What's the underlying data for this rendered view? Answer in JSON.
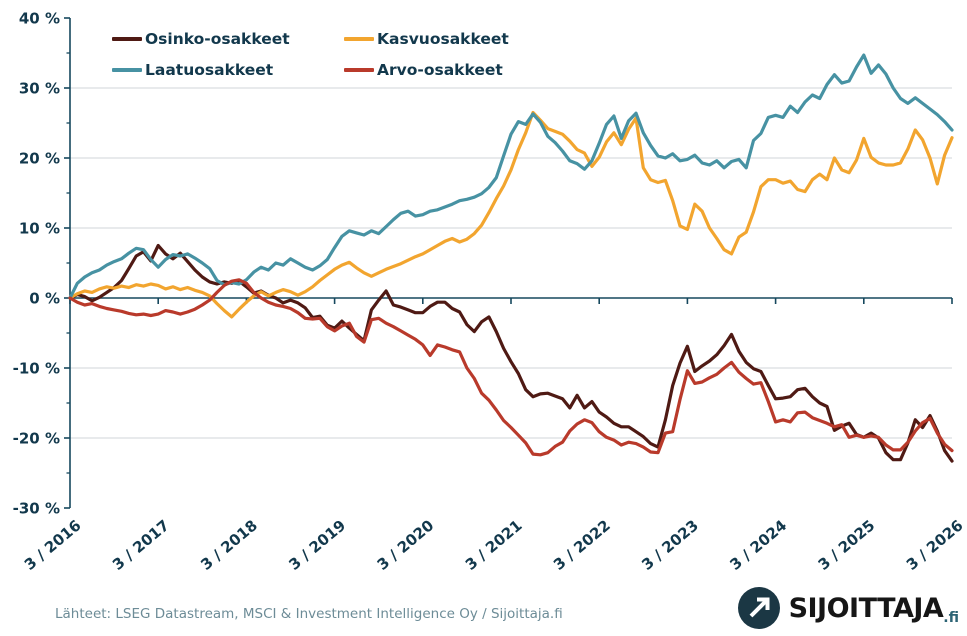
{
  "chart_data": {
    "type": "line",
    "title": "",
    "unit": "%",
    "x_start": "3/2016",
    "x_end": "3/2026",
    "x_interval": "monthly",
    "n_points": 121,
    "x_tick_labels": [
      "3 / 2016",
      "3 / 2017",
      "3 / 2018",
      "3 / 2019",
      "3 / 2020",
      "3 / 2021",
      "3 / 2022",
      "3 / 2023",
      "3 / 2024",
      "3 / 2025",
      "3 / 2026"
    ],
    "y_ticks": [
      40,
      30,
      20,
      10,
      0,
      -10,
      -20,
      -30
    ],
    "y_tick_labels": [
      "40 %",
      "30 %",
      "20 %",
      "10 %",
      "0 %",
      "-10 %",
      "-20 %",
      "-30 %"
    ],
    "ylim": [
      -30,
      40
    ],
    "grid": "horizontal",
    "legend_position": "top-left",
    "series": [
      {
        "name": "Osinko-osakkeet",
        "color": "#4f1a14",
        "values": [
          0,
          0.5,
          0.2,
          -0.4,
          0.1,
          0.8,
          1.5,
          2.5,
          4.2,
          6.0,
          6.6,
          5.3,
          7.5,
          6.3,
          5.6,
          6.4,
          5.2,
          4.0,
          3.0,
          2.3,
          2.0,
          2.3,
          2.1,
          2.4,
          1.6,
          0.7,
          1.0,
          0.4,
          0.0,
          -0.7,
          -0.3,
          -0.7,
          -1.4,
          -2.8,
          -2.6,
          -3.9,
          -4.3,
          -3.3,
          -4.3,
          -5.2,
          -6.1,
          -1.7,
          -0.3,
          1.0,
          -1.0,
          -1.3,
          -1.7,
          -2.1,
          -2.1,
          -1.2,
          -0.6,
          -0.6,
          -1.5,
          -2.0,
          -3.8,
          -4.8,
          -3.4,
          -2.7,
          -4.8,
          -7.2,
          -9.1,
          -10.8,
          -13.1,
          -14.1,
          -13.7,
          -13.6,
          -14.0,
          -14.4,
          -15.7,
          -13.9,
          -15.7,
          -14.8,
          -16.3,
          -17.0,
          -17.9,
          -18.4,
          -18.4,
          -19.1,
          -19.8,
          -20.8,
          -21.3,
          -17.4,
          -12.5,
          -9.3,
          -6.9,
          -10.5,
          -9.7,
          -9.0,
          -8.1,
          -6.8,
          -5.2,
          -7.6,
          -9.2,
          -10.1,
          -10.5,
          -12.5,
          -14.4,
          -14.3,
          -14.1,
          -13.1,
          -12.9,
          -14.1,
          -15.0,
          -15.5,
          -18.9,
          -18.3,
          -17.9,
          -19.5,
          -19.9,
          -19.3,
          -20.0,
          -22.1,
          -23.1,
          -23.1,
          -20.7,
          -17.4,
          -18.5,
          -16.8,
          -19.0,
          -21.8,
          -23.3
        ]
      },
      {
        "name": "Kasvuosakkeet",
        "color": "#f2a52f",
        "values": [
          0,
          0.6,
          1.0,
          0.8,
          1.3,
          1.6,
          1.4,
          1.7,
          1.5,
          1.9,
          1.7,
          2.0,
          1.8,
          1.3,
          1.6,
          1.2,
          1.5,
          1.1,
          0.8,
          0.3,
          -0.8,
          -1.8,
          -2.7,
          -1.6,
          -0.6,
          0.3,
          0.9,
          0.3,
          0.8,
          1.2,
          0.9,
          0.4,
          0.9,
          1.6,
          2.5,
          3.3,
          4.1,
          4.7,
          5.1,
          4.3,
          3.6,
          3.1,
          3.6,
          4.1,
          4.5,
          4.9,
          5.4,
          5.9,
          6.3,
          6.9,
          7.5,
          8.1,
          8.5,
          8.0,
          8.4,
          9.2,
          10.4,
          12.2,
          14.2,
          16.0,
          18.3,
          21.2,
          23.6,
          26.5,
          25.4,
          24.2,
          23.8,
          23.4,
          22.4,
          21.2,
          20.7,
          18.8,
          20.1,
          22.3,
          23.6,
          21.9,
          24.1,
          25.7,
          18.6,
          16.9,
          16.5,
          16.8,
          13.9,
          10.3,
          9.8,
          13.4,
          12.4,
          10.0,
          8.5,
          6.9,
          6.3,
          8.7,
          9.4,
          12.3,
          15.9,
          16.9,
          16.9,
          16.4,
          16.7,
          15.5,
          15.2,
          16.9,
          17.7,
          16.9,
          20.0,
          18.3,
          17.9,
          19.7,
          22.8,
          20.1,
          19.3,
          19.0,
          19.0,
          19.3,
          21.3,
          24.0,
          22.6,
          20.0,
          16.3,
          20.4,
          22.9
        ]
      },
      {
        "name": "Laatuosakkeet",
        "color": "#4792a3",
        "values": [
          0,
          2.1,
          3.0,
          3.6,
          4.0,
          4.7,
          5.2,
          5.6,
          6.4,
          7.1,
          6.9,
          5.5,
          4.4,
          5.5,
          6.2,
          6.0,
          6.3,
          5.7,
          5.0,
          4.2,
          2.5,
          1.9,
          2.2,
          2.0,
          2.6,
          3.7,
          4.4,
          4.0,
          5.0,
          4.7,
          5.6,
          5.0,
          4.4,
          4.0,
          4.6,
          5.5,
          7.2,
          8.8,
          9.6,
          9.3,
          9.0,
          9.6,
          9.2,
          10.2,
          11.2,
          12.1,
          12.4,
          11.7,
          11.9,
          12.4,
          12.6,
          13.0,
          13.4,
          13.9,
          14.1,
          14.4,
          14.9,
          15.8,
          17.2,
          20.3,
          23.4,
          25.2,
          24.8,
          26.3,
          25.1,
          23.1,
          22.2,
          21.0,
          19.6,
          19.2,
          18.4,
          19.6,
          22.1,
          24.8,
          26.0,
          22.8,
          25.3,
          26.4,
          23.6,
          21.8,
          20.3,
          20.0,
          20.6,
          19.6,
          19.8,
          20.4,
          19.3,
          19.0,
          19.6,
          18.6,
          19.5,
          19.8,
          18.6,
          22.5,
          23.5,
          25.8,
          26.1,
          25.8,
          27.4,
          26.5,
          28.0,
          29.0,
          28.5,
          30.5,
          31.9,
          30.7,
          31.0,
          33.0,
          34.7,
          32.1,
          33.3,
          32.0,
          30.0,
          28.5,
          27.8,
          28.6,
          27.8,
          27.0,
          26.2,
          25.2,
          24.0
        ]
      },
      {
        "name": "Arvo-osakkeet",
        "color": "#b93a2b",
        "values": [
          0,
          -0.6,
          -1.0,
          -0.8,
          -1.2,
          -1.5,
          -1.7,
          -1.9,
          -2.2,
          -2.4,
          -2.3,
          -2.5,
          -2.3,
          -1.8,
          -2.0,
          -2.3,
          -2.0,
          -1.6,
          -1.0,
          -0.3,
          0.8,
          1.8,
          2.4,
          2.6,
          2.1,
          0.8,
          0.0,
          -0.6,
          -1.0,
          -1.2,
          -1.5,
          -2.1,
          -2.9,
          -3.0,
          -2.9,
          -4.1,
          -4.7,
          -4.0,
          -3.6,
          -5.5,
          -6.3,
          -3.1,
          -2.9,
          -3.6,
          -4.1,
          -4.7,
          -5.3,
          -5.9,
          -6.7,
          -8.2,
          -6.7,
          -7.0,
          -7.4,
          -7.7,
          -10.0,
          -11.5,
          -13.6,
          -14.6,
          -16.0,
          -17.5,
          -18.5,
          -19.6,
          -20.7,
          -22.3,
          -22.4,
          -22.1,
          -21.2,
          -20.6,
          -19.0,
          -18.0,
          -17.4,
          -17.8,
          -19.1,
          -19.9,
          -20.3,
          -21.0,
          -20.6,
          -20.8,
          -21.3,
          -22.0,
          -22.1,
          -19.3,
          -19.1,
          -14.5,
          -10.4,
          -12.2,
          -12.0,
          -11.4,
          -10.9,
          -10.0,
          -9.2,
          -10.6,
          -11.5,
          -12.3,
          -12.1,
          -14.8,
          -17.7,
          -17.4,
          -17.7,
          -16.4,
          -16.3,
          -17.1,
          -17.5,
          -17.9,
          -18.4,
          -18.1,
          -19.9,
          -19.6,
          -19.9,
          -19.7,
          -19.9,
          -21.0,
          -21.7,
          -21.7,
          -20.6,
          -19.0,
          -17.8,
          -17.2,
          -19.3,
          -20.9,
          -21.8
        ]
      }
    ]
  },
  "colors": {
    "axis": "#16485e",
    "grid": "#d9dee1",
    "tick_label": "#12384c",
    "source_text": "#6d8c97",
    "logo_circle": "#1b3744"
  },
  "footer": {
    "source_text": "Lähteet: LSEG Datastream, MSCI & Investment Intelligence Oy / Sijoittaja.fi",
    "logo_text": "SIJOITTAJA",
    "logo_suffix": ".fi"
  }
}
